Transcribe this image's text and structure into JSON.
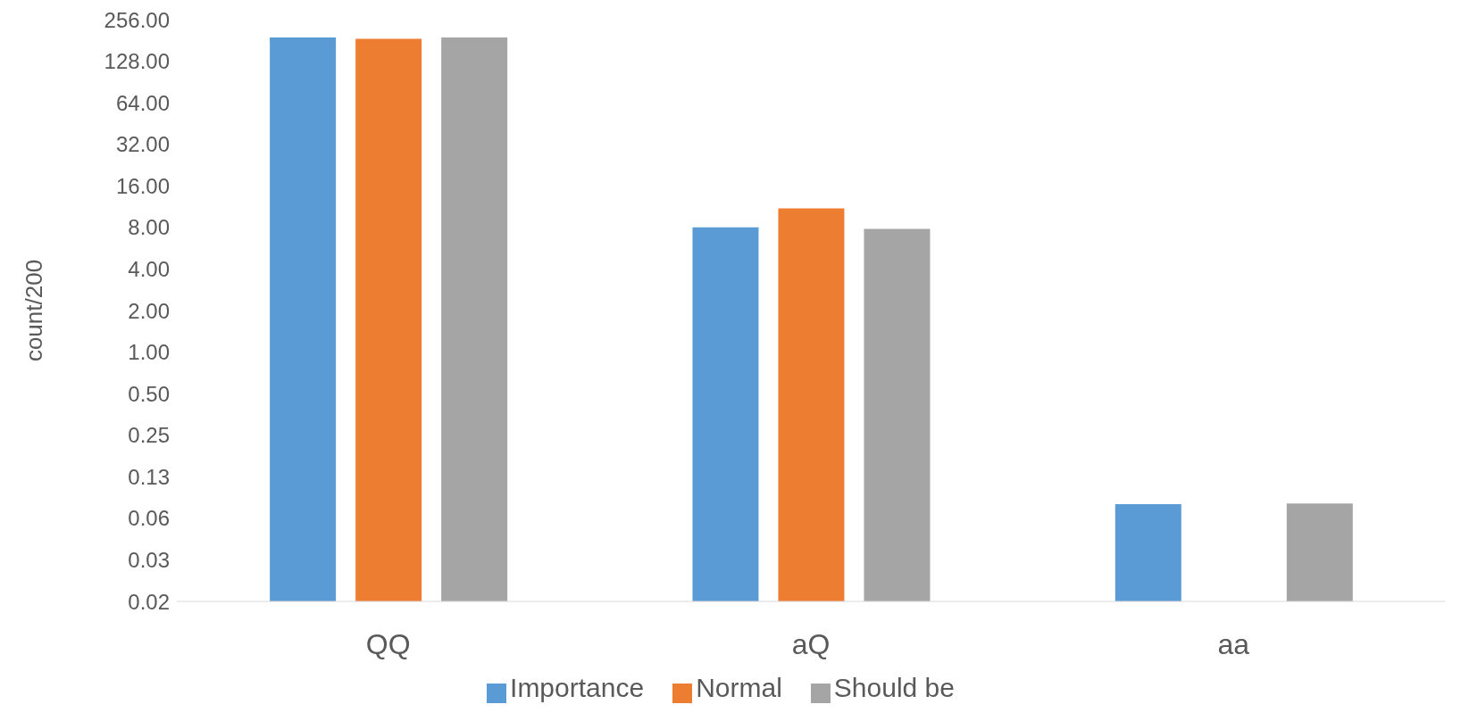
{
  "chart_data": {
    "type": "bar",
    "ylabel": "count/200",
    "categories": [
      "QQ",
      "aQ",
      "aa"
    ],
    "series": [
      {
        "name": "Importance",
        "color": "#5b9bd5",
        "values": [
          190,
          8,
          0.079
        ]
      },
      {
        "name": "Normal",
        "color": "#ed7d31",
        "values": [
          186,
          11,
          null
        ]
      },
      {
        "name": "Should be",
        "color": "#a5a5a5",
        "values": [
          190,
          7.8,
          0.08
        ]
      }
    ],
    "log": "y",
    "ylim": [
      0.015625,
      256
    ],
    "yticks": [
      {
        "value": 0.015625,
        "label": "0.02"
      },
      {
        "value": 0.03125,
        "label": "0.03"
      },
      {
        "value": 0.0625,
        "label": "0.06"
      },
      {
        "value": 0.125,
        "label": "0.13"
      },
      {
        "value": 0.25,
        "label": "0.25"
      },
      {
        "value": 0.5,
        "label": "0.50"
      },
      {
        "value": 1,
        "label": "1.00"
      },
      {
        "value": 2,
        "label": "2.00"
      },
      {
        "value": 4,
        "label": "4.00"
      },
      {
        "value": 8,
        "label": "8.00"
      },
      {
        "value": 16,
        "label": "16.00"
      },
      {
        "value": 32,
        "label": "32.00"
      },
      {
        "value": 64,
        "label": "64.00"
      },
      {
        "value": 128,
        "label": "128.00"
      },
      {
        "value": 256,
        "label": "256.00"
      }
    ],
    "grid": false,
    "legend": "bottom"
  }
}
